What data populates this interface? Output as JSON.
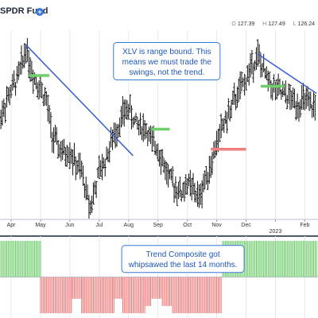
{
  "header": {
    "title": "SPDR Fund",
    "ohlc": [
      {
        "label": "O",
        "value": "127.39"
      },
      {
        "label": "H",
        "value": "127.49"
      },
      {
        "label": "L",
        "value": "126.24"
      }
    ]
  },
  "colors": {
    "bar": "#111111",
    "trendline": "#3a5fcd",
    "support_green": "#6fcf6a",
    "resistance_red": "#f08080",
    "annot_border": "#3a78d8",
    "annot_text": "#1f56b8",
    "hist_green": "#5fc85a",
    "hist_red": "#f26d6d"
  },
  "chart_data": [
    {
      "type": "ohlc",
      "panel": "price",
      "x_tick_labels": [
        "Apr",
        "May",
        "Jun",
        "Jul",
        "Aug",
        "Sep",
        "Oct",
        "Nov",
        "Dec",
        "2023",
        "Feb"
      ],
      "x_tick_months": [
        3,
        4,
        5,
        6,
        7,
        8,
        9,
        10,
        11,
        12,
        13
      ],
      "ylim": [
        122,
        146
      ],
      "closes": [
        {
          "m": 2.6,
          "v": 135.0
        },
        {
          "m": 2.9,
          "v": 138.0
        },
        {
          "m": 3.2,
          "v": 140.5
        },
        {
          "m": 3.4,
          "v": 143.0
        },
        {
          "m": 3.5,
          "v": 145.0
        },
        {
          "m": 3.7,
          "v": 141.5
        },
        {
          "m": 3.9,
          "v": 140.0
        },
        {
          "m": 4.2,
          "v": 137.5
        },
        {
          "m": 4.4,
          "v": 132.5
        },
        {
          "m": 4.6,
          "v": 131.0
        },
        {
          "m": 4.8,
          "v": 130.0
        },
        {
          "m": 5.0,
          "v": 130.5
        },
        {
          "m": 5.2,
          "v": 128.5
        },
        {
          "m": 5.4,
          "v": 127.5
        },
        {
          "m": 5.6,
          "v": 124.0
        },
        {
          "m": 5.7,
          "v": 122.8
        },
        {
          "m": 5.85,
          "v": 125.0
        },
        {
          "m": 6.0,
          "v": 127.5
        },
        {
          "m": 6.2,
          "v": 129.0
        },
        {
          "m": 6.4,
          "v": 131.5
        },
        {
          "m": 6.6,
          "v": 133.5
        },
        {
          "m": 6.8,
          "v": 135.5
        },
        {
          "m": 7.0,
          "v": 136.5
        },
        {
          "m": 7.2,
          "v": 134.5
        },
        {
          "m": 7.4,
          "v": 134.0
        },
        {
          "m": 7.6,
          "v": 133.5
        },
        {
          "m": 7.8,
          "v": 131.5
        },
        {
          "m": 8.0,
          "v": 131.0
        },
        {
          "m": 8.2,
          "v": 128.5
        },
        {
          "m": 8.4,
          "v": 126.5
        },
        {
          "m": 8.6,
          "v": 125.5
        },
        {
          "m": 8.8,
          "v": 124.5
        },
        {
          "m": 9.0,
          "v": 126.0
        },
        {
          "m": 9.2,
          "v": 125.0
        },
        {
          "m": 9.4,
          "v": 123.8
        },
        {
          "m": 9.6,
          "v": 126.5
        },
        {
          "m": 9.8,
          "v": 128.5
        },
        {
          "m": 10.0,
          "v": 131.5
        },
        {
          "m": 10.2,
          "v": 134.0
        },
        {
          "m": 10.4,
          "v": 135.5
        },
        {
          "m": 10.6,
          "v": 137.5
        },
        {
          "m": 10.8,
          "v": 139.0
        },
        {
          "m": 11.0,
          "v": 140.5
        },
        {
          "m": 11.2,
          "v": 142.5
        },
        {
          "m": 11.4,
          "v": 143.8
        },
        {
          "m": 11.6,
          "v": 141.5
        },
        {
          "m": 11.8,
          "v": 140.0
        },
        {
          "m": 12.0,
          "v": 139.0
        },
        {
          "m": 12.2,
          "v": 138.5
        },
        {
          "m": 12.4,
          "v": 138.0
        },
        {
          "m": 12.6,
          "v": 137.5
        },
        {
          "m": 12.8,
          "v": 137.0
        },
        {
          "m": 13.0,
          "v": 137.5
        },
        {
          "m": 13.2,
          "v": 136.5
        },
        {
          "m": 13.4,
          "v": 136.8
        }
      ],
      "trendlines": [
        {
          "from": {
            "m": 3.5,
            "v": 145.3
          },
          "to": {
            "m": 7.15,
            "v": 129.8
          }
        },
        {
          "from": {
            "m": 11.4,
            "v": 144.0
          },
          "to": {
            "m": 13.4,
            "v": 138.5
          }
        }
      ],
      "horizontal_levels": [
        {
          "from_m": 3.6,
          "to_m": 4.3,
          "v": 141.0,
          "color_key": "support_green"
        },
        {
          "from_m": 7.75,
          "to_m": 8.4,
          "v": 133.5,
          "color_key": "support_green"
        },
        {
          "from_m": 9.8,
          "to_m": 11.0,
          "v": 130.7,
          "color_key": "resistance_red"
        },
        {
          "from_m": 11.5,
          "to_m": 12.3,
          "v": 139.5,
          "color_key": "support_green"
        }
      ],
      "annotations": [
        {
          "lines": [
            "XLV is range bound. This",
            "means we must trade the",
            "swings, not the trend."
          ],
          "anchor_m": 8.3,
          "anchor_v": 143.0
        }
      ]
    },
    {
      "type": "bar",
      "panel": "indicator",
      "series": "Trend Composite",
      "ylim": [
        -5,
        5
      ],
      "segments": [
        {
          "from_m": 2.6,
          "to_m": 4.0,
          "value": 5
        },
        {
          "from_m": 4.0,
          "to_m": 5.05,
          "value": -5
        },
        {
          "from_m": 5.05,
          "to_m": 5.4,
          "value": -3
        },
        {
          "from_m": 5.4,
          "to_m": 6.5,
          "value": -5
        },
        {
          "from_m": 6.5,
          "to_m": 6.8,
          "value": -3
        },
        {
          "from_m": 6.8,
          "to_m": 7.55,
          "value": -5
        },
        {
          "from_m": 7.55,
          "to_m": 7.75,
          "value": -4
        },
        {
          "from_m": 7.75,
          "to_m": 8.15,
          "value": -3
        },
        {
          "from_m": 8.15,
          "to_m": 8.5,
          "value": -4
        },
        {
          "from_m": 8.5,
          "to_m": 10.2,
          "value": -5
        },
        {
          "from_m": 10.2,
          "to_m": 13.45,
          "value": 5
        }
      ],
      "annotations": [
        {
          "lines": [
            "Trend Composite got",
            "whipsawed the last 14 months."
          ],
          "anchor_m": 8.85,
          "anchor_v": 2.5
        }
      ]
    }
  ]
}
